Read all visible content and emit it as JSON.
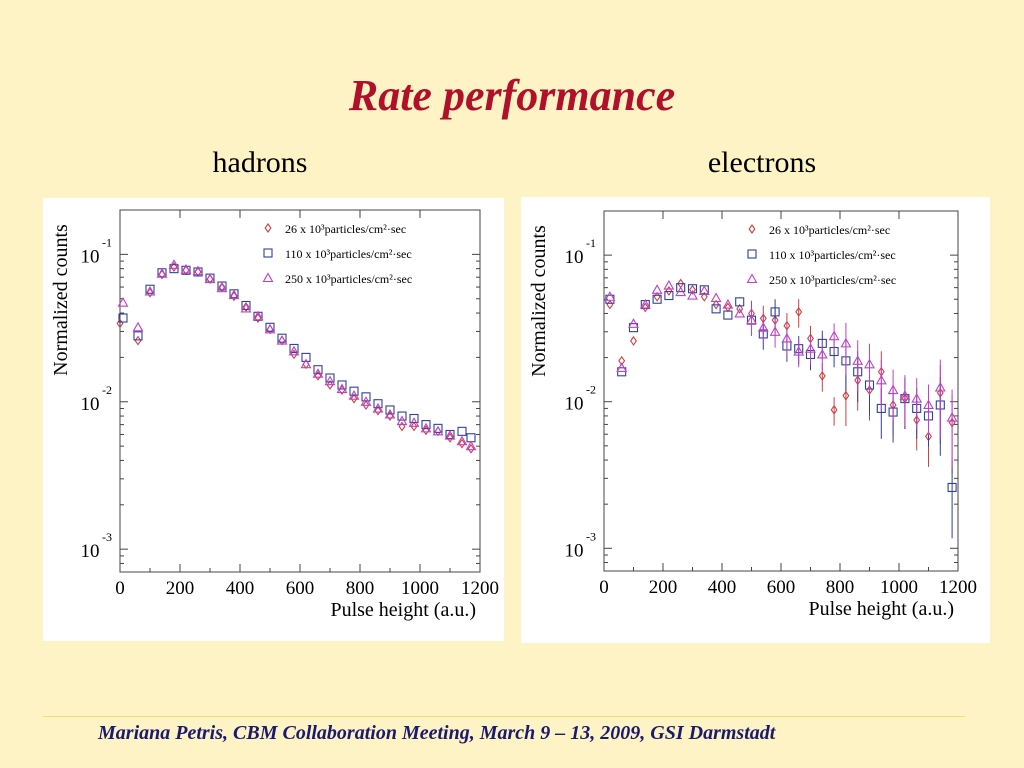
{
  "slide": {
    "title": "Rate performance",
    "footer": "Mariana Petris, CBM Collaboration Meeting, March 9 – 13, 2009, GSI Darmstadt"
  },
  "chart_data": [
    {
      "type": "scatter",
      "caption": "hadrons",
      "xlabel": "Pulse height (a.u.)",
      "ylabel": "Normalized counts",
      "xlim": [
        0,
        1200
      ],
      "ylim": [
        0.0007,
        0.2
      ],
      "yscale": "log",
      "xticks": [
        0,
        200,
        400,
        600,
        800,
        1000,
        1200
      ],
      "yticks": [
        {
          "value": 0.1,
          "base": "10",
          "exp": "-1"
        },
        {
          "value": 0.01,
          "base": "10",
          "exp": "-2"
        },
        {
          "value": 0.001,
          "base": "10",
          "exp": "-3"
        }
      ],
      "legend_position": "top-right",
      "series": [
        {
          "name": "26 x 10³particles/cm²·sec",
          "marker": "diamond",
          "color": "#d04040",
          "x": [
            0,
            60,
            100,
            140,
            180,
            220,
            260,
            300,
            340,
            380,
            420,
            460,
            500,
            540,
            580,
            620,
            660,
            700,
            740,
            780,
            820,
            860,
            900,
            940,
            980,
            1020,
            1060,
            1100,
            1140,
            1170
          ],
          "y": [
            0.034,
            0.026,
            0.055,
            0.073,
            0.082,
            0.078,
            0.076,
            0.068,
            0.06,
            0.052,
            0.044,
            0.037,
            0.031,
            0.026,
            0.021,
            0.018,
            0.015,
            0.013,
            0.012,
            0.0105,
            0.0095,
            0.0087,
            0.008,
            0.0068,
            0.0068,
            0.0064,
            0.0063,
            0.0057,
            0.0052,
            0.0048
          ]
        },
        {
          "name": "110 x 10³particles/cm²·sec",
          "marker": "square",
          "color": "#3040a0",
          "x": [
            10,
            60,
            100,
            140,
            180,
            220,
            260,
            300,
            340,
            380,
            420,
            460,
            500,
            540,
            580,
            620,
            660,
            700,
            740,
            780,
            820,
            860,
            900,
            940,
            980,
            1020,
            1060,
            1100,
            1140,
            1170
          ],
          "y": [
            0.037,
            0.028,
            0.058,
            0.075,
            0.08,
            0.078,
            0.076,
            0.069,
            0.061,
            0.054,
            0.045,
            0.038,
            0.032,
            0.027,
            0.023,
            0.02,
            0.0165,
            0.0145,
            0.013,
            0.0118,
            0.0108,
            0.0097,
            0.0088,
            0.008,
            0.0077,
            0.007,
            0.0066,
            0.006,
            0.0063,
            0.0057
          ]
        },
        {
          "name": "250 x 10³particles/cm²·sec",
          "marker": "triangle",
          "color": "#c040c8",
          "x": [
            10,
            60,
            100,
            140,
            180,
            220,
            260,
            300,
            340,
            380,
            420,
            460,
            500,
            540,
            580,
            620,
            660,
            700,
            740,
            780,
            820,
            860,
            900,
            940,
            980,
            1020,
            1060,
            1100,
            1140,
            1170
          ],
          "y": [
            0.047,
            0.032,
            0.056,
            0.074,
            0.085,
            0.079,
            0.077,
            0.068,
            0.059,
            0.053,
            0.043,
            0.038,
            0.031,
            0.026,
            0.022,
            0.018,
            0.0155,
            0.0138,
            0.0122,
            0.011,
            0.01,
            0.009,
            0.0082,
            0.0074,
            0.0072,
            0.0066,
            0.0063,
            0.0059,
            0.0054,
            0.005
          ]
        }
      ]
    },
    {
      "type": "scatter",
      "caption": "electrons",
      "xlabel": "Pulse height (a.u.)",
      "ylabel": "Normalized counts",
      "xlim": [
        0,
        1200
      ],
      "ylim": [
        0.0007,
        0.2
      ],
      "yscale": "log",
      "xticks": [
        0,
        200,
        400,
        600,
        800,
        1000,
        1200
      ],
      "yticks": [
        {
          "value": 0.1,
          "base": "10",
          "exp": "-1"
        },
        {
          "value": 0.01,
          "base": "10",
          "exp": "-2"
        },
        {
          "value": 0.001,
          "base": "10",
          "exp": "-3"
        }
      ],
      "legend_position": "top-right",
      "series": [
        {
          "name": "26 x 10³particles/cm²·sec",
          "marker": "diamond",
          "color": "#d04040",
          "x": [
            20,
            60,
            100,
            140,
            180,
            220,
            260,
            300,
            340,
            380,
            420,
            460,
            500,
            540,
            580,
            620,
            660,
            700,
            740,
            780,
            820,
            860,
            900,
            940,
            980,
            1020,
            1060,
            1100,
            1140,
            1180
          ],
          "y": [
            0.046,
            0.019,
            0.026,
            0.044,
            0.052,
            0.057,
            0.064,
            0.058,
            0.052,
            0.046,
            0.044,
            0.043,
            0.04,
            0.037,
            0.036,
            0.033,
            0.041,
            0.027,
            0.015,
            0.0088,
            0.011,
            0.014,
            0.012,
            0.016,
            0.0095,
            0.0105,
            0.0075,
            0.0058,
            0.0115,
            0.0072
          ]
        },
        {
          "name": "110 x 10³particles/cm²·sec",
          "marker": "square",
          "color": "#3040a0",
          "x": [
            20,
            60,
            100,
            140,
            180,
            220,
            260,
            300,
            340,
            380,
            420,
            460,
            500,
            540,
            580,
            620,
            660,
            700,
            740,
            780,
            820,
            860,
            900,
            940,
            980,
            1020,
            1060,
            1100,
            1140,
            1180
          ],
          "y": [
            0.05,
            0.016,
            0.032,
            0.046,
            0.05,
            0.053,
            0.06,
            0.059,
            0.058,
            0.043,
            0.039,
            0.048,
            0.036,
            0.029,
            0.041,
            0.024,
            0.023,
            0.021,
            0.025,
            0.022,
            0.019,
            0.016,
            0.013,
            0.009,
            0.0085,
            0.0105,
            0.009,
            0.008,
            0.0095,
            0.0026
          ]
        },
        {
          "name": "250 x 10³particles/cm²·sec",
          "marker": "triangle",
          "color": "#c040c8",
          "x": [
            20,
            60,
            100,
            140,
            180,
            220,
            260,
            300,
            340,
            380,
            420,
            460,
            500,
            540,
            580,
            620,
            660,
            700,
            740,
            780,
            820,
            860,
            900,
            940,
            980,
            1020,
            1060,
            1100,
            1140,
            1180
          ],
          "y": [
            0.052,
            0.017,
            0.034,
            0.046,
            0.058,
            0.062,
            0.056,
            0.053,
            0.057,
            0.051,
            0.046,
            0.04,
            0.036,
            0.032,
            0.03,
            0.027,
            0.022,
            0.023,
            0.021,
            0.028,
            0.025,
            0.019,
            0.018,
            0.014,
            0.012,
            0.011,
            0.0105,
            0.0095,
            0.0125,
            0.0078
          ]
        }
      ]
    }
  ]
}
